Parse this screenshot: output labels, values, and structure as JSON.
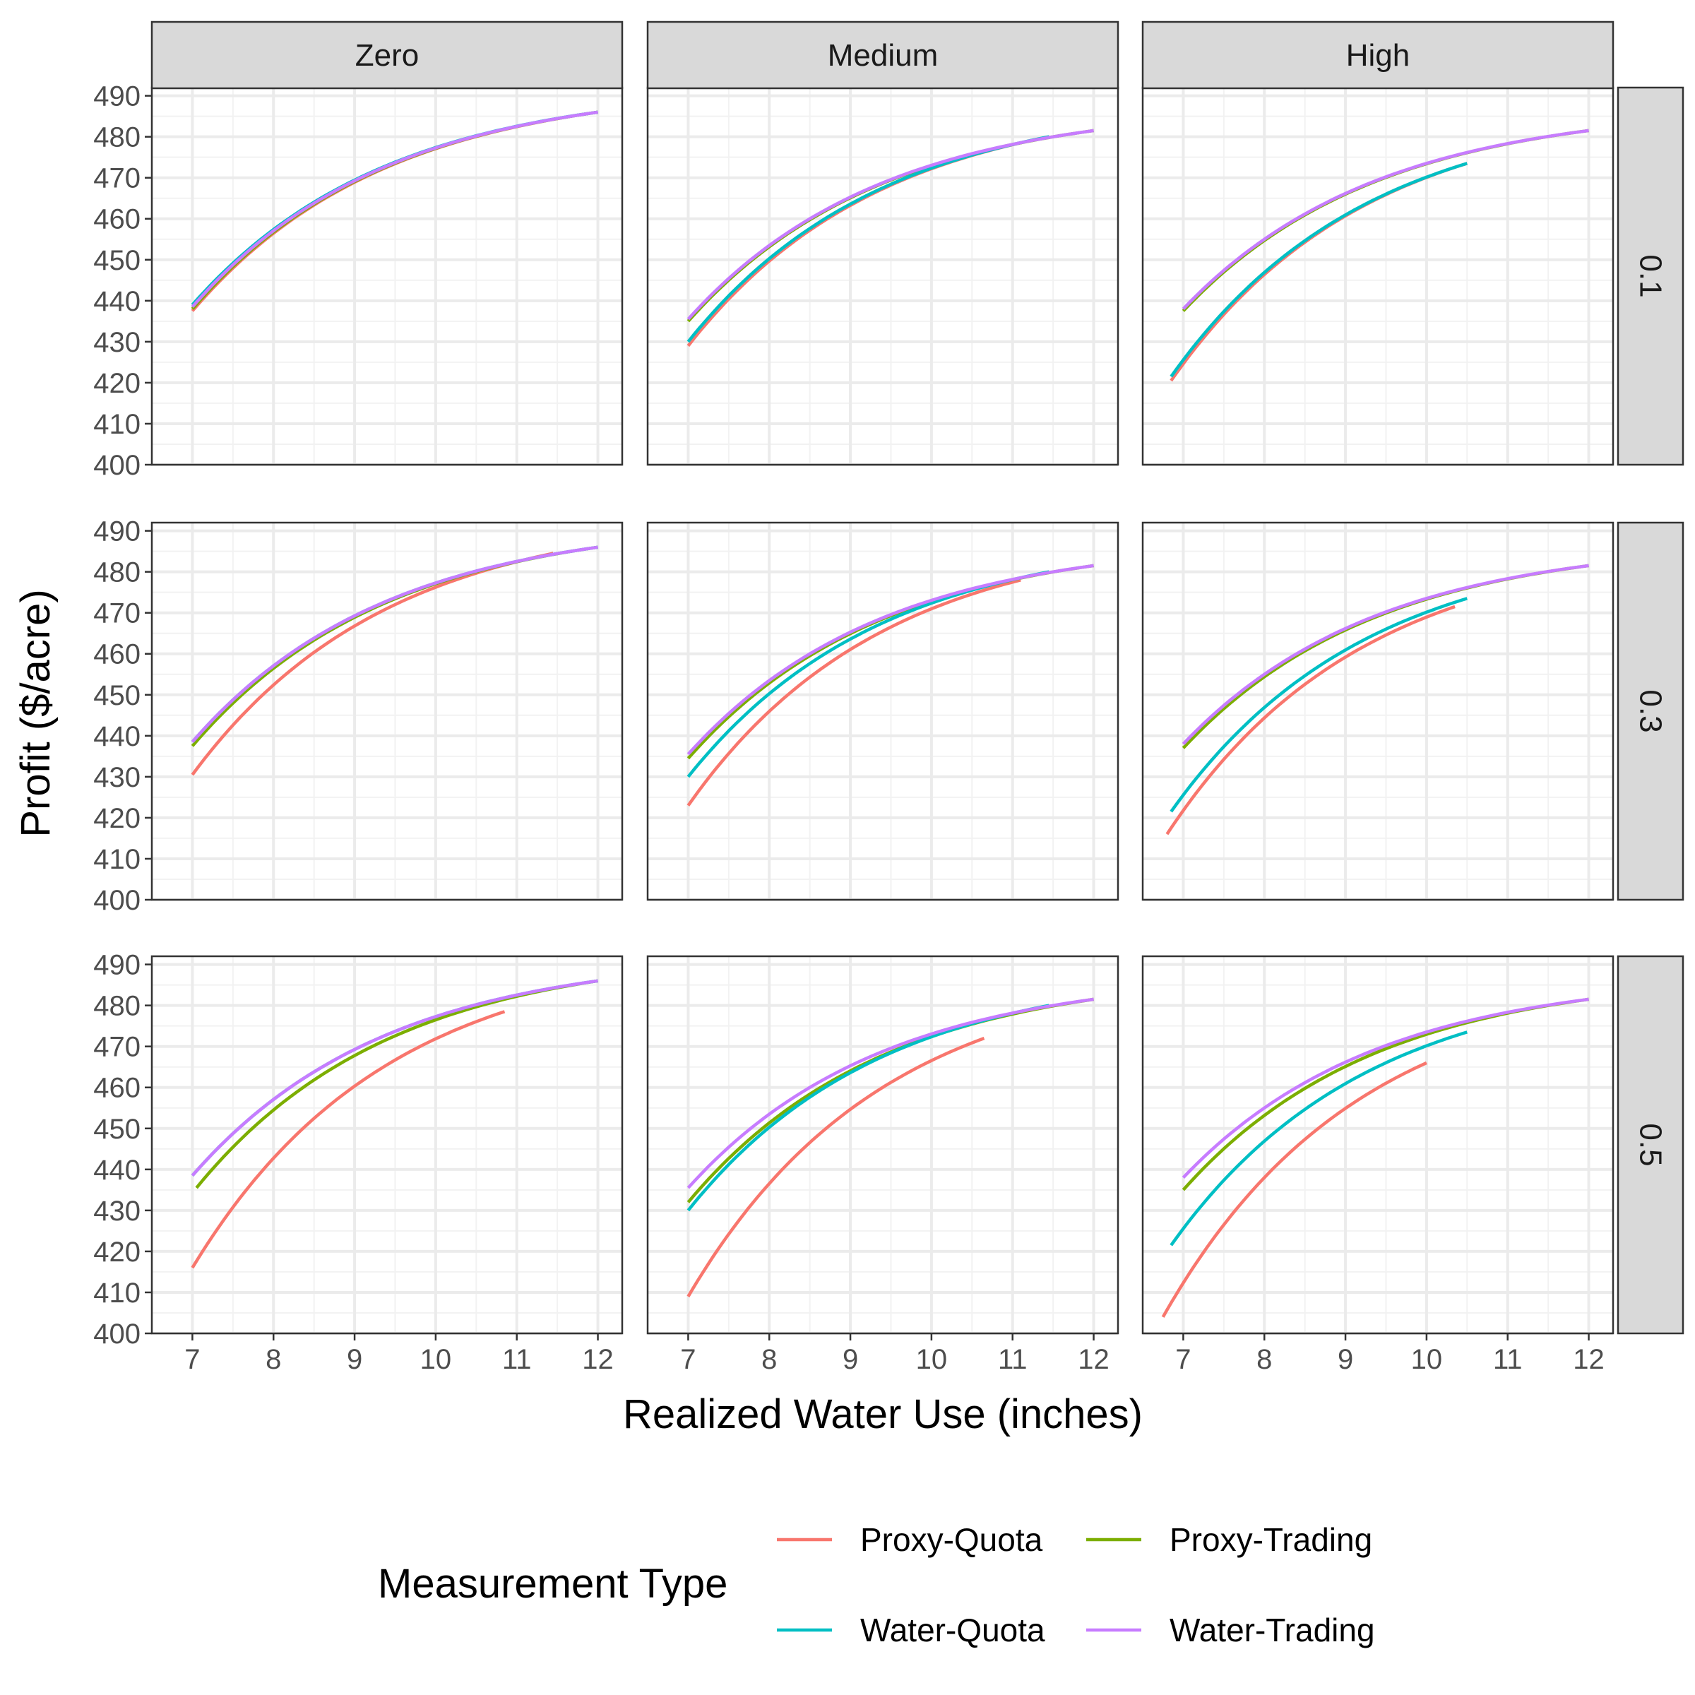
{
  "chart_data": {
    "type": "line",
    "facet_cols": [
      "Zero",
      "Medium",
      "High"
    ],
    "facet_rows": [
      "0.1",
      "0.3",
      "0.5"
    ],
    "xlabel": "Realized Water Use (inches)",
    "ylabel": "Profit ($/acre)",
    "xlim": [
      6.5,
      12.3
    ],
    "ylim": [
      400,
      492
    ],
    "x_ticks": [
      7,
      8,
      9,
      10,
      11,
      12
    ],
    "y_ticks": [
      400,
      410,
      420,
      430,
      440,
      450,
      460,
      470,
      480,
      490
    ],
    "grid": true,
    "legend": {
      "title": "Measurement Type",
      "position": "bottom",
      "entries": [
        {
          "name": "Proxy-Quota",
          "color": "#F8766D"
        },
        {
          "name": "Proxy-Trading",
          "color": "#7CAE00"
        },
        {
          "name": "Water-Quota",
          "color": "#00BFC4"
        },
        {
          "name": "Water-Trading",
          "color": "#C77CFF"
        }
      ]
    },
    "panels": [
      {
        "row": "0.1",
        "col": "Zero",
        "series": [
          {
            "name": "Proxy-Quota",
            "x0": 7.0,
            "y0": 437.5,
            "x1": 12.0,
            "y1": 486.0
          },
          {
            "name": "Proxy-Trading",
            "x0": 7.0,
            "y0": 438.0,
            "x1": 12.0,
            "y1": 486.0
          },
          {
            "name": "Water-Quota",
            "x0": 7.0,
            "y0": 439.0,
            "x1": 12.0,
            "y1": 486.0
          },
          {
            "name": "Water-Trading",
            "x0": 7.0,
            "y0": 438.5,
            "x1": 12.0,
            "y1": 486.0
          }
        ]
      },
      {
        "row": "0.1",
        "col": "Medium",
        "series": [
          {
            "name": "Proxy-Quota",
            "x0": 7.0,
            "y0": 429.0,
            "x1": 11.45,
            "y1": 480.0
          },
          {
            "name": "Proxy-Trading",
            "x0": 7.0,
            "y0": 435.0,
            "x1": 12.0,
            "y1": 481.5
          },
          {
            "name": "Water-Quota",
            "x0": 7.0,
            "y0": 430.0,
            "x1": 11.45,
            "y1": 480.0
          },
          {
            "name": "Water-Trading",
            "x0": 7.0,
            "y0": 435.5,
            "x1": 12.0,
            "y1": 481.5
          }
        ]
      },
      {
        "row": "0.1",
        "col": "High",
        "series": [
          {
            "name": "Proxy-Quota",
            "x0": 6.85,
            "y0": 420.5,
            "x1": 10.5,
            "y1": 473.5
          },
          {
            "name": "Proxy-Trading",
            "x0": 7.0,
            "y0": 437.5,
            "x1": 12.0,
            "y1": 481.5
          },
          {
            "name": "Water-Quota",
            "x0": 6.85,
            "y0": 421.5,
            "x1": 10.5,
            "y1": 473.5
          },
          {
            "name": "Water-Trading",
            "x0": 7.0,
            "y0": 438.0,
            "x1": 12.0,
            "y1": 481.5
          }
        ]
      },
      {
        "row": "0.3",
        "col": "Zero",
        "series": [
          {
            "name": "Proxy-Quota",
            "x0": 7.0,
            "y0": 430.5,
            "x1": 11.45,
            "y1": 484.5
          },
          {
            "name": "Proxy-Trading",
            "x0": 7.0,
            "y0": 437.5,
            "x1": 12.0,
            "y1": 486.0
          },
          {
            "name": "Water-Quota",
            "x0": 7.0,
            "y0": 438.5,
            "x1": 12.0,
            "y1": 486.0
          },
          {
            "name": "Water-Trading",
            "x0": 7.0,
            "y0": 438.5,
            "x1": 12.0,
            "y1": 486.0
          }
        ]
      },
      {
        "row": "0.3",
        "col": "Medium",
        "series": [
          {
            "name": "Proxy-Quota",
            "x0": 7.0,
            "y0": 423.0,
            "x1": 11.1,
            "y1": 478.0
          },
          {
            "name": "Proxy-Trading",
            "x0": 7.0,
            "y0": 434.5,
            "x1": 12.0,
            "y1": 481.5
          },
          {
            "name": "Water-Quota",
            "x0": 7.0,
            "y0": 430.0,
            "x1": 11.45,
            "y1": 480.0
          },
          {
            "name": "Water-Trading",
            "x0": 7.0,
            "y0": 435.5,
            "x1": 12.0,
            "y1": 481.5
          }
        ]
      },
      {
        "row": "0.3",
        "col": "High",
        "series": [
          {
            "name": "Proxy-Quota",
            "x0": 6.8,
            "y0": 416.0,
            "x1": 10.35,
            "y1": 471.5
          },
          {
            "name": "Proxy-Trading",
            "x0": 7.0,
            "y0": 437.0,
            "x1": 12.0,
            "y1": 481.5
          },
          {
            "name": "Water-Quota",
            "x0": 6.85,
            "y0": 421.5,
            "x1": 10.5,
            "y1": 473.5
          },
          {
            "name": "Water-Trading",
            "x0": 7.0,
            "y0": 438.0,
            "x1": 12.0,
            "y1": 481.5
          }
        ]
      },
      {
        "row": "0.5",
        "col": "Zero",
        "series": [
          {
            "name": "Proxy-Quota",
            "x0": 7.0,
            "y0": 416.0,
            "x1": 10.85,
            "y1": 478.5
          },
          {
            "name": "Proxy-Trading",
            "x0": 7.05,
            "y0": 435.5,
            "x1": 12.0,
            "y1": 486.0
          },
          {
            "name": "Water-Quota",
            "x0": 7.0,
            "y0": 438.5,
            "x1": 12.0,
            "y1": 486.0
          },
          {
            "name": "Water-Trading",
            "x0": 7.0,
            "y0": 438.5,
            "x1": 12.0,
            "y1": 486.0
          }
        ]
      },
      {
        "row": "0.5",
        "col": "Medium",
        "series": [
          {
            "name": "Proxy-Quota",
            "x0": 7.0,
            "y0": 409.0,
            "x1": 10.65,
            "y1": 472.0
          },
          {
            "name": "Proxy-Trading",
            "x0": 7.0,
            "y0": 432.0,
            "x1": 12.0,
            "y1": 481.5
          },
          {
            "name": "Water-Quota",
            "x0": 7.0,
            "y0": 430.0,
            "x1": 11.45,
            "y1": 480.0
          },
          {
            "name": "Water-Trading",
            "x0": 7.0,
            "y0": 435.5,
            "x1": 12.0,
            "y1": 481.5
          }
        ]
      },
      {
        "row": "0.5",
        "col": "High",
        "series": [
          {
            "name": "Proxy-Quota",
            "x0": 6.75,
            "y0": 404.0,
            "x1": 10.0,
            "y1": 466.0
          },
          {
            "name": "Proxy-Trading",
            "x0": 7.0,
            "y0": 435.0,
            "x1": 12.0,
            "y1": 481.5
          },
          {
            "name": "Water-Quota",
            "x0": 6.85,
            "y0": 421.5,
            "x1": 10.5,
            "y1": 473.5
          },
          {
            "name": "Water-Trading",
            "x0": 7.0,
            "y0": 438.0,
            "x1": 12.0,
            "y1": 481.5
          }
        ]
      }
    ]
  }
}
